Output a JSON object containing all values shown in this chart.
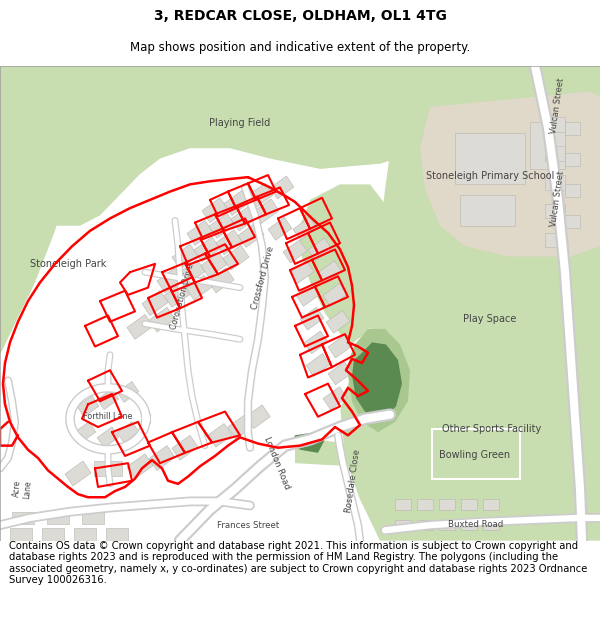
{
  "title_line1": "3, REDCAR CLOSE, OLDHAM, OL1 4TG",
  "title_line2": "Map shows position and indicative extent of the property.",
  "footer_text": "Contains OS data © Crown copyright and database right 2021. This information is subject to Crown copyright and database rights 2023 and is reproduced with the permission of HM Land Registry. The polygons (including the associated geometry, namely x, y co-ordinates) are subject to Crown copyright and database rights 2023 Ordnance Survey 100026316.",
  "title_fontsize": 10,
  "subtitle_fontsize": 8.5,
  "footer_fontsize": 7.2,
  "map_bg": "#f2f2ee",
  "green_light": "#c8ddb0",
  "green_medium": "#a8c890",
  "green_dark": "#5a8a50",
  "building_fill": "#dddbd5",
  "building_outline": "#b8b6b0",
  "red_boundary": "#ff0000",
  "boundary_lw": 1.5,
  "white": "#ffffff"
}
